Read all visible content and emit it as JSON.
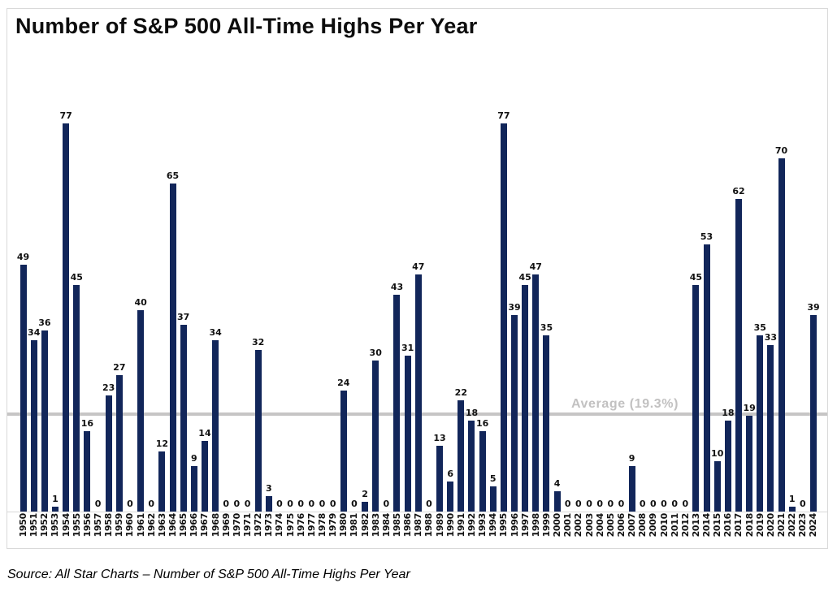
{
  "page": {
    "source_note": "Source: All Star Charts – Number of S&P 500 All-Time Highs Per Year"
  },
  "colors": {
    "bar": "#12265a",
    "average_line": "#c6c5c5",
    "average_text": "#c2c1c1",
    "border": "#d9d9d9",
    "text": "#111111"
  },
  "chart_data": {
    "type": "bar",
    "title": "Number of S&P 500 All-Time Highs Per Year",
    "categories": [
      "1950",
      "1951",
      "1952",
      "1953",
      "1954",
      "1955",
      "1956",
      "1957",
      "1958",
      "1959",
      "1960",
      "1961",
      "1962",
      "1963",
      "1964",
      "1965",
      "1966",
      "1967",
      "1968",
      "1969",
      "1970",
      "1971",
      "1972",
      "1973",
      "1974",
      "1975",
      "1976",
      "1977",
      "1978",
      "1979",
      "1980",
      "1981",
      "1982",
      "1983",
      "1984",
      "1985",
      "1986",
      "1987",
      "1988",
      "1989",
      "1990",
      "1991",
      "1992",
      "1993",
      "1994",
      "1995",
      "1996",
      "1997",
      "1998",
      "1999",
      "2000",
      "2001",
      "2002",
      "2003",
      "2004",
      "2005",
      "2006",
      "2007",
      "2008",
      "2009",
      "2010",
      "2011",
      "2012",
      "2013",
      "2014",
      "2015",
      "2016",
      "2017",
      "2018",
      "2019",
      "2020",
      "2021",
      "2022",
      "2023",
      "2024"
    ],
    "values": [
      49,
      34,
      36,
      1,
      77,
      45,
      16,
      0,
      23,
      27,
      0,
      40,
      0,
      12,
      65,
      37,
      9,
      14,
      34,
      0,
      0,
      0,
      32,
      3,
      0,
      0,
      0,
      0,
      0,
      0,
      24,
      0,
      2,
      30,
      0,
      43,
      31,
      47,
      0,
      13,
      6,
      22,
      18,
      16,
      5,
      77,
      39,
      45,
      47,
      35,
      4,
      0,
      0,
      0,
      0,
      0,
      0,
      9,
      0,
      0,
      0,
      0,
      0,
      45,
      53,
      10,
      18,
      62,
      19,
      35,
      33,
      70,
      1,
      0,
      39
    ],
    "value_labels": true,
    "xlabel": "",
    "ylabel": "",
    "ylim": [
      0,
      80
    ],
    "grid": false,
    "legend_position": "none",
    "x_tick_rotation": 90,
    "annotations": [
      {
        "type": "hline",
        "y": 19.3,
        "label": "Average (19.3%)"
      }
    ]
  }
}
